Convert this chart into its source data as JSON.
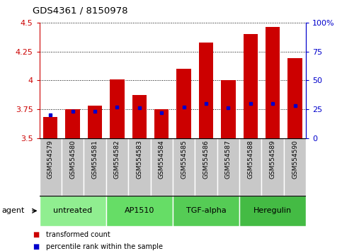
{
  "title": "GDS4361 / 8150978",
  "samples": [
    "GSM554579",
    "GSM554580",
    "GSM554581",
    "GSM554582",
    "GSM554583",
    "GSM554584",
    "GSM554585",
    "GSM554586",
    "GSM554587",
    "GSM554588",
    "GSM554589",
    "GSM554590"
  ],
  "red_values": [
    3.68,
    3.75,
    3.78,
    4.01,
    3.87,
    3.75,
    4.1,
    4.33,
    4.0,
    4.4,
    4.46,
    4.19
  ],
  "blue_percentiles": [
    20,
    23,
    23,
    27,
    26,
    22,
    27,
    30,
    26,
    30,
    30,
    28
  ],
  "ymin": 3.5,
  "ymax": 4.5,
  "yticks": [
    3.5,
    3.75,
    4.0,
    4.25,
    4.5
  ],
  "ytick_labels": [
    "3.5",
    "3.75",
    "4",
    "4.25",
    "4.5"
  ],
  "right_yticks": [
    0,
    25,
    50,
    75,
    100
  ],
  "right_ytick_labels": [
    "0",
    "25",
    "50",
    "75",
    "100%"
  ],
  "agents": [
    {
      "label": "untreated",
      "start": 0,
      "end": 3,
      "color": "#90ee90"
    },
    {
      "label": "AP1510",
      "start": 3,
      "end": 6,
      "color": "#66dd66"
    },
    {
      "label": "TGF-alpha",
      "start": 6,
      "end": 9,
      "color": "#55cc55"
    },
    {
      "label": "Heregulin",
      "start": 9,
      "end": 12,
      "color": "#44bb44"
    }
  ],
  "bar_color": "#cc0000",
  "blue_color": "#0000cc",
  "bar_width": 0.65,
  "title_color": "#000000",
  "left_axis_color": "#cc0000",
  "right_axis_color": "#0000cc",
  "agent_label": "agent",
  "legend_items": [
    {
      "color": "#cc0000",
      "label": "transformed count"
    },
    {
      "color": "#0000cc",
      "label": "percentile rank within the sample"
    }
  ],
  "tick_bg_color": "#c8c8c8",
  "fig_bg_color": "#ffffff",
  "agent_colors_alt": [
    "#a8e8a8",
    "#7de07d",
    "#5cd45c",
    "#3ec83e"
  ]
}
